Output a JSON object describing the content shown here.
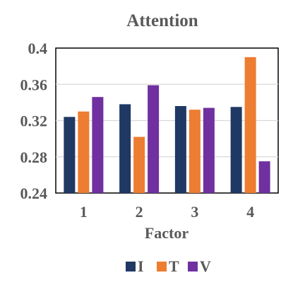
{
  "chart_data": {
    "type": "bar",
    "title": "Attention",
    "xlabel": "Factor",
    "ylabel": "",
    "categories": [
      "1",
      "2",
      "3",
      "4"
    ],
    "ylim": [
      0.24,
      0.4
    ],
    "yticks": [
      "0.24",
      "0.28",
      "0.32",
      "0.36",
      "0.4"
    ],
    "grid": true,
    "legend_position": "bottom",
    "series": [
      {
        "name": "I",
        "color": "#1f3864",
        "values": [
          0.324,
          0.338,
          0.336,
          0.335
        ]
      },
      {
        "name": "T",
        "color": "#ed7d31",
        "values": [
          0.33,
          0.302,
          0.332,
          0.39
        ]
      },
      {
        "name": "V",
        "color": "#7030a0",
        "values": [
          0.346,
          0.359,
          0.334,
          0.275
        ]
      }
    ]
  }
}
